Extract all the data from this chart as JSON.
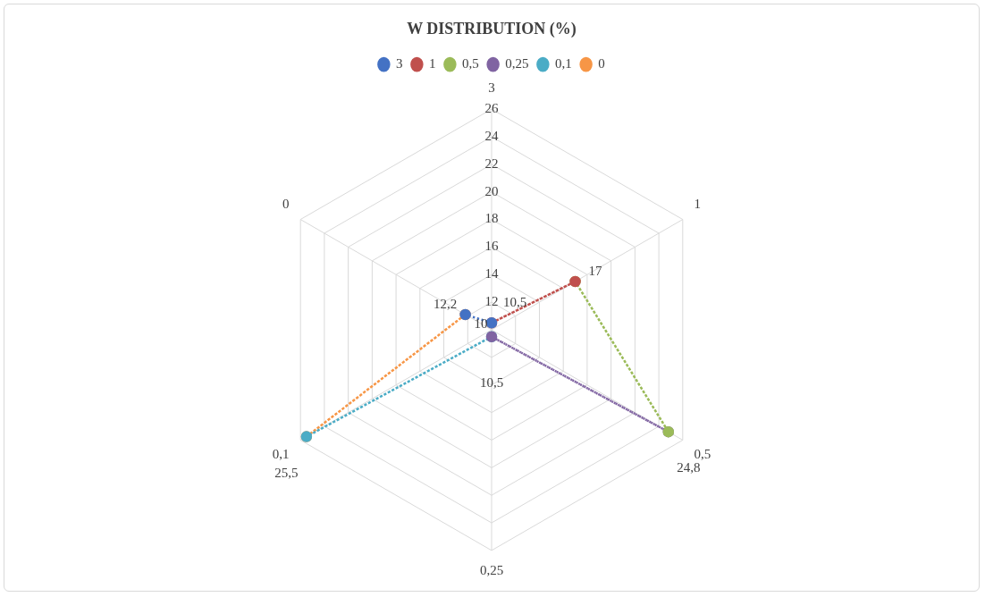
{
  "chart_data": {
    "type": "radar",
    "title": "W DISTRIBUTION (%)",
    "categories": [
      "3",
      "1",
      "0,5",
      "0,25",
      "0,1",
      "0"
    ],
    "ylim": [
      10,
      26
    ],
    "yticks": [
      {
        "value": 10,
        "label": "10"
      },
      {
        "value": 12,
        "label": "12"
      },
      {
        "value": 14,
        "label": "14"
      },
      {
        "value": 16,
        "label": "16"
      },
      {
        "value": 18,
        "label": "18"
      },
      {
        "value": 20,
        "label": "20"
      },
      {
        "value": 22,
        "label": "22"
      },
      {
        "value": 24,
        "label": "24"
      },
      {
        "value": 26,
        "label": "26"
      }
    ],
    "series": [
      {
        "name": "3",
        "color": "#4472c4",
        "values": [
          10.5,
          null,
          null,
          null,
          null,
          12.2
        ],
        "value_labels": [
          "10,5",
          null,
          null,
          null,
          null,
          null
        ]
      },
      {
        "name": "1",
        "color": "#c0504d",
        "values": [
          10.5,
          17,
          null,
          null,
          null,
          null
        ],
        "value_labels": [
          null,
          "17",
          null,
          null,
          null,
          null
        ]
      },
      {
        "name": "0,5",
        "color": "#9bbb59",
        "values": [
          null,
          17,
          24.8,
          null,
          null,
          null
        ],
        "value_labels": [
          null,
          null,
          "24,8",
          null,
          null,
          null
        ]
      },
      {
        "name": "0,25",
        "color": "#8064a2",
        "values": [
          null,
          null,
          24.8,
          10.5,
          null,
          null
        ],
        "value_labels": [
          null,
          null,
          null,
          "10,5",
          null,
          null
        ]
      },
      {
        "name": "0,1",
        "color": "#4bacc6",
        "values": [
          null,
          null,
          null,
          10.5,
          25.5,
          null
        ],
        "value_labels": [
          null,
          null,
          null,
          null,
          "25,5",
          null
        ]
      },
      {
        "name": "0",
        "color": "#f79646",
        "values": [
          null,
          null,
          null,
          null,
          25.5,
          12.2
        ],
        "value_labels": [
          null,
          null,
          null,
          null,
          null,
          "12,2"
        ]
      }
    ],
    "grid": true,
    "legend": "top",
    "marker": "circle",
    "line_style": "dotted"
  }
}
